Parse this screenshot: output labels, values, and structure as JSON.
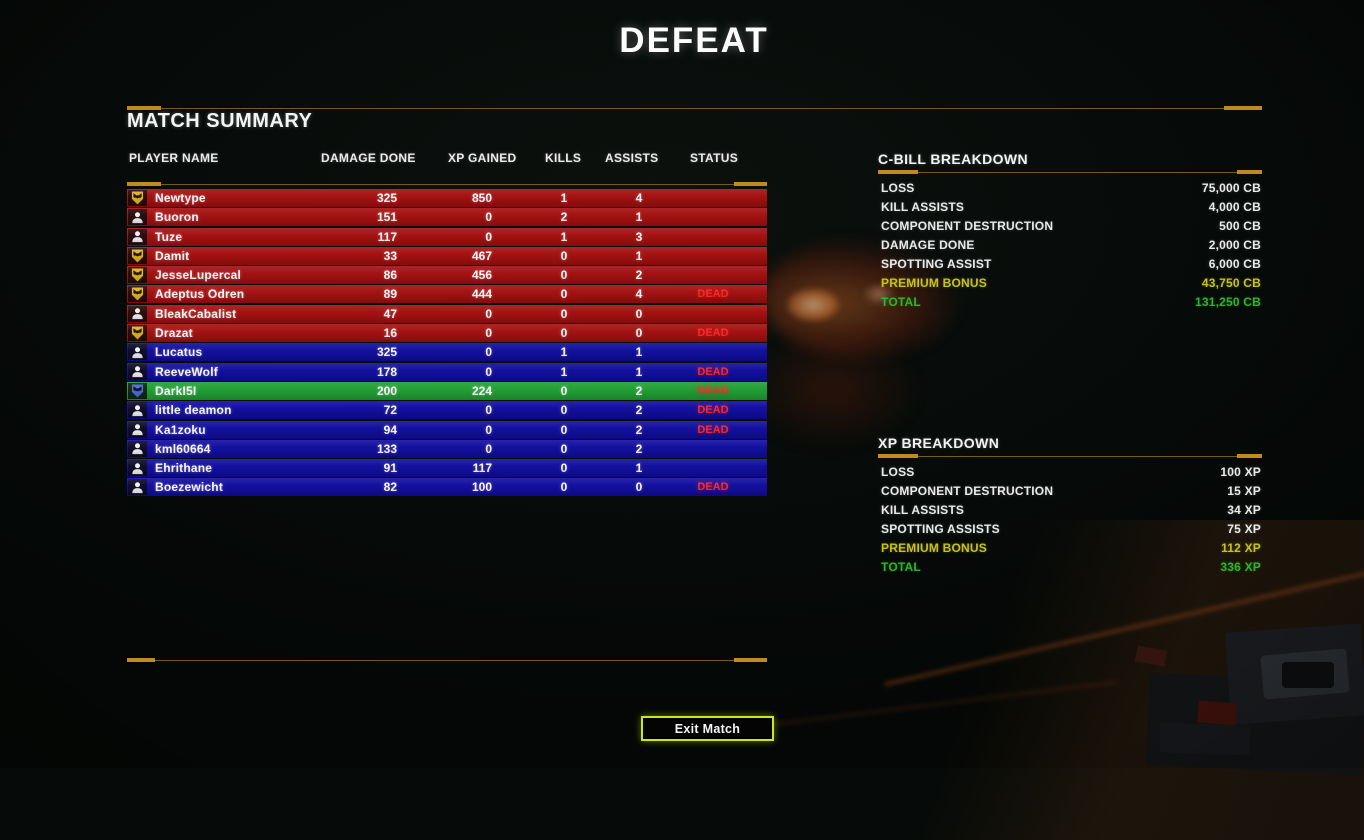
{
  "title": "DEFEAT",
  "match_summary": {
    "heading": "MATCH SUMMARY",
    "columns": [
      "PLAYER NAME",
      "DAMAGE DONE",
      "XP GAINED",
      "KILLS",
      "ASSISTS",
      "STATUS"
    ],
    "rows": [
      {
        "name": "Newtype",
        "icon": "unit-badge-yellow",
        "team": "enemy",
        "is_player": false,
        "damage": "325",
        "xp": "850",
        "kills": "1",
        "assists": "4",
        "status": ""
      },
      {
        "name": "Buoron",
        "icon": "pilot",
        "team": "enemy",
        "is_player": false,
        "damage": "151",
        "xp": "0",
        "kills": "2",
        "assists": "1",
        "status": ""
      },
      {
        "name": "Tuze",
        "icon": "pilot",
        "team": "enemy",
        "is_player": false,
        "damage": "117",
        "xp": "0",
        "kills": "1",
        "assists": "3",
        "status": ""
      },
      {
        "name": "Damit",
        "icon": "unit-badge-yellow",
        "team": "enemy",
        "is_player": false,
        "damage": "33",
        "xp": "467",
        "kills": "0",
        "assists": "1",
        "status": ""
      },
      {
        "name": "JesseLupercal",
        "icon": "unit-badge-yellow",
        "team": "enemy",
        "is_player": false,
        "damage": "86",
        "xp": "456",
        "kills": "0",
        "assists": "2",
        "status": ""
      },
      {
        "name": "Adeptus Odren",
        "icon": "unit-badge-yellow",
        "team": "enemy",
        "is_player": false,
        "damage": "89",
        "xp": "444",
        "kills": "0",
        "assists": "4",
        "status": "DEAD"
      },
      {
        "name": "BleakCabalist",
        "icon": "pilot",
        "team": "enemy",
        "is_player": false,
        "damage": "47",
        "xp": "0",
        "kills": "0",
        "assists": "0",
        "status": ""
      },
      {
        "name": "Drazat",
        "icon": "unit-badge-yellow",
        "team": "enemy",
        "is_player": false,
        "damage": "16",
        "xp": "0",
        "kills": "0",
        "assists": "0",
        "status": "DEAD"
      },
      {
        "name": "Lucatus",
        "icon": "pilot",
        "team": "ally",
        "is_player": false,
        "damage": "325",
        "xp": "0",
        "kills": "1",
        "assists": "1",
        "status": ""
      },
      {
        "name": "ReeveWolf",
        "icon": "pilot",
        "team": "ally",
        "is_player": false,
        "damage": "178",
        "xp": "0",
        "kills": "1",
        "assists": "1",
        "status": "DEAD"
      },
      {
        "name": "DarkI5I",
        "icon": "unit-badge-blue",
        "team": "ally",
        "is_player": true,
        "damage": "200",
        "xp": "224",
        "kills": "0",
        "assists": "2",
        "status": "DEAD"
      },
      {
        "name": "little deamon",
        "icon": "pilot",
        "team": "ally",
        "is_player": false,
        "damage": "72",
        "xp": "0",
        "kills": "0",
        "assists": "2",
        "status": "DEAD"
      },
      {
        "name": "Ka1zoku",
        "icon": "pilot",
        "team": "ally",
        "is_player": false,
        "damage": "94",
        "xp": "0",
        "kills": "0",
        "assists": "2",
        "status": "DEAD"
      },
      {
        "name": "kml60664",
        "icon": "pilot",
        "team": "ally",
        "is_player": false,
        "damage": "133",
        "xp": "0",
        "kills": "0",
        "assists": "2",
        "status": ""
      },
      {
        "name": "Ehrithane",
        "icon": "pilot",
        "team": "ally",
        "is_player": false,
        "damage": "91",
        "xp": "117",
        "kills": "0",
        "assists": "1",
        "status": ""
      },
      {
        "name": "Boezewicht",
        "icon": "pilot",
        "team": "ally",
        "is_player": false,
        "damage": "82",
        "xp": "100",
        "kills": "0",
        "assists": "0",
        "status": "DEAD"
      }
    ]
  },
  "cbill_breakdown": {
    "heading": "C-BILL BREAKDOWN",
    "rows": [
      {
        "label": "LOSS",
        "value": "75,000 CB",
        "type": "normal"
      },
      {
        "label": "KILL ASSISTS",
        "value": "4,000 CB",
        "type": "normal"
      },
      {
        "label": "COMPONENT DESTRUCTION",
        "value": "500 CB",
        "type": "normal"
      },
      {
        "label": "DAMAGE DONE",
        "value": "2,000 CB",
        "type": "normal"
      },
      {
        "label": "SPOTTING ASSIST",
        "value": "6,000 CB",
        "type": "normal"
      },
      {
        "label": "PREMIUM BONUS",
        "value": "43,750 CB",
        "type": "premium"
      },
      {
        "label": "TOTAL",
        "value": "131,250 CB",
        "type": "total"
      }
    ]
  },
  "xp_breakdown": {
    "heading": "XP BREAKDOWN",
    "rows": [
      {
        "label": "LOSS",
        "value": "100 XP",
        "type": "normal"
      },
      {
        "label": "COMPONENT DESTRUCTION",
        "value": "15 XP",
        "type": "normal"
      },
      {
        "label": "KILL ASSISTS",
        "value": "34 XP",
        "type": "normal"
      },
      {
        "label": "SPOTTING ASSISTS",
        "value": "75 XP",
        "type": "normal"
      },
      {
        "label": "PREMIUM BONUS",
        "value": "112 XP",
        "type": "premium"
      },
      {
        "label": "TOTAL",
        "value": "336 XP",
        "type": "total"
      }
    ]
  },
  "exit_button": {
    "label": "Exit Match"
  },
  "colors": {
    "enemy_row": "#a30e0e",
    "ally_row": "#100c9e",
    "player_row": "#1f9e32",
    "accent_thin": "#7a5a12",
    "accent_thick": "#c08a1c",
    "premium_text": "#c6c21d",
    "total_text": "#2eb52e",
    "dead_text": "#ff2626",
    "button_border": "#cbe715"
  }
}
